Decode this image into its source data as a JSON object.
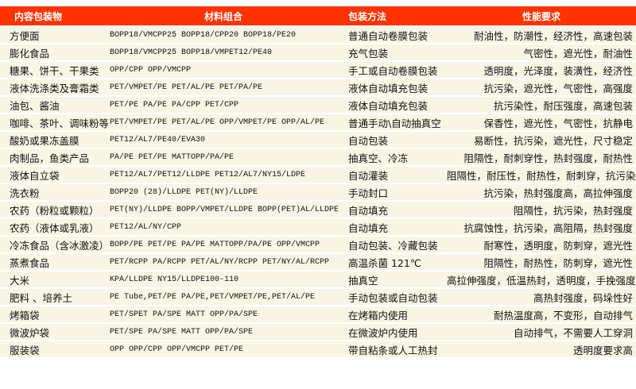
{
  "header": {
    "col1": "内容包装物",
    "col2": "材料组合",
    "col3": "包装方法",
    "col4": "性能要求"
  },
  "colors": {
    "header_bg": "#ff3300",
    "row_bg": "#f8f5e4"
  },
  "rows": [
    {
      "item": "方便面",
      "material": "BOPP18/VMCPP25  BOPP18/CPP20  BOPP18/PE20",
      "method": "普通自动卷膜包装",
      "requirement": "耐油性，防潮性，经济性，高速包装"
    },
    {
      "item": "膨化食品",
      "material": "BOPP18/VMCPP25  BOPP18/VMPET12/PE40",
      "method": "充气包装",
      "requirement": "气密性，遮光性，耐油性"
    },
    {
      "item": "糖果、饼干、干果类",
      "material": "OPP/CPP OPP/VMCPP",
      "method": "手工或自动卷膜包装",
      "requirement": "透明度，光泽度，装潢性，经济性"
    },
    {
      "item": "液体洗涤类及膏霜类",
      "material": "PET/VMPET/PE PET/AL/PE  PET/PA/PE",
      "method": "液体自动填充包装",
      "requirement": "抗污染，遮光性，气密性，高强度"
    },
    {
      "item": "油包、酱油",
      "material": "PET/PE  PA/PE PA/CPP PET/CPP",
      "method": "液体自动填充包装",
      "requirement": "抗污染性，耐压强度，高速包装"
    },
    {
      "item": "咖啡、茶叶、调味粉等",
      "material": "PET/VMPET/PE PET/AL/PE OPP/VMPET/PE OPP/AL/PE",
      "method": "普通手动\\自动抽真空",
      "requirement": "保香性，遮光性，气密性，抗静电"
    },
    {
      "item": "酸奶或果冻盖膜",
      "material": "PET12/AL7/PE40/EVA30",
      "method": "自动包装",
      "requirement": "易断性，抗污染，遮光性，尺寸稳定"
    },
    {
      "item": "肉制品，鱼类产品",
      "material": "PA/PE PET/PE MATTOPP/PA/PE",
      "method": "抽真空、冷冻",
      "requirement": "阻隔性，耐刺穿性，热封强度，耐热性"
    },
    {
      "item": "液体自立袋",
      "material": "PET12/AL7/PET12/LLDPE PET12/AL7/NY15/LDPE",
      "method": "自动灌装",
      "requirement": "阻隔性，耐压性，耐热性，耐刺穿，抗污染"
    },
    {
      "item": "洗衣粉",
      "material": "BOPP20 (28)/LLDPE PET(NY)/LLDPE",
      "method": "手动封口",
      "requirement": "抗污染，热封强度高，高拉伸强度"
    },
    {
      "item": "农药（粉粒或颗粒）",
      "material": "PET(NY)/LLDPE BOPP/VMPET/LLDPE BOPP(PET)AL/LLDPE",
      "method": "自动填充",
      "requirement": "阻隔性，抗污染，热封强度"
    },
    {
      "item": "农药（液体或乳液）",
      "material": "PET12/AL/NY/CPP",
      "method": "自动填充",
      "requirement": "抗腐蚀性，抗污染，高阻隔，热封强度"
    },
    {
      "item": "冷冻食品（含冰激凌）",
      "material": "BOPP/PE PET/PE PA/PE MATTOPP/PA/PE OPP/VMCPP",
      "method": "自动包装、冷藏包装",
      "requirement": "耐寒性，透明度，防刺穿，遮光性"
    },
    {
      "item": "蒸煮食品",
      "material": "PET/RCPP PA/RCPP PET/AL/NY/RCPP PET/NY/AL/RCPP",
      "method": "高温杀菌 121℃",
      "requirement": "阻隔性，耐热性，防刺穿，遮光性"
    },
    {
      "item": "大米",
      "material": "KPA/LLDPE NY15/LLDPE100-110",
      "method": "抽真空",
      "requirement": "高拉伸强度，低温热封，透明度，手挽强度高"
    },
    {
      "item": "肥料 、培养土",
      "material": "PE Tube,PET/PE  PA/PE,PET/VMPET/PE,PET/AL/PE",
      "method": "手动包装或自动包装",
      "requirement": "高热封强度，码垛性好"
    },
    {
      "item": "烤箱袋",
      "material": "PET/SPET PA/SPE MATT OPP/PA/SPE",
      "method": "在烤箱内使用",
      "requirement": "耐热温度高，不变形，自动排气"
    },
    {
      "item": "微波炉袋",
      "material": "PET/SPE PA/SPE MATT OPP/PA/SPE",
      "method": "在微波炉内使用",
      "requirement": "自动排气，不需要人工穿洞"
    },
    {
      "item": "服装袋",
      "material": "OPP  OPP/CPP OPP/VMCPP PET/PE",
      "method": "带自粘条或人工热封",
      "requirement": "透明度要求高"
    }
  ]
}
